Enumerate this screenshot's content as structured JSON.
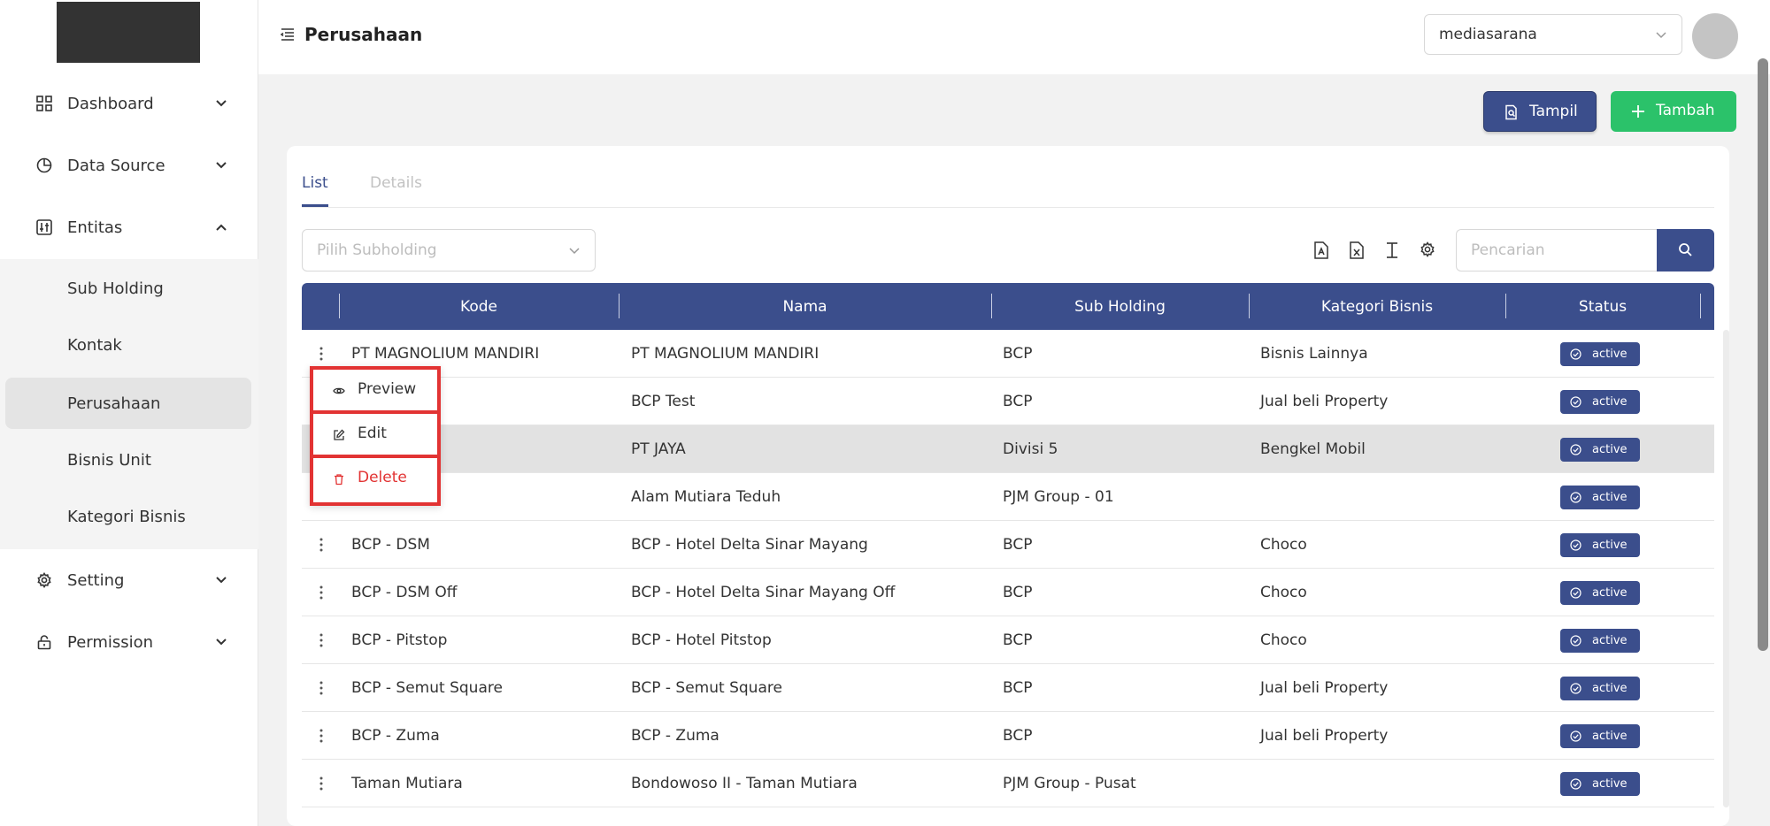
{
  "sidebar": {
    "items": [
      {
        "label": "Dashboard",
        "icon": "grid-icon"
      },
      {
        "label": "Data Source",
        "icon": "pie-chart-icon"
      },
      {
        "label": "Entitas",
        "icon": "sliders-icon"
      },
      {
        "label": "Setting",
        "icon": "gear-icon"
      },
      {
        "label": "Permission",
        "icon": "lock-icon"
      }
    ],
    "entitas_submenu": [
      {
        "label": "Sub Holding"
      },
      {
        "label": "Kontak"
      },
      {
        "label": "Perusahaan"
      },
      {
        "label": "Bisnis Unit"
      },
      {
        "label": "Kategori Bisnis"
      }
    ]
  },
  "header": {
    "title": "Perusahaan",
    "org_select": "mediasarana"
  },
  "actions": {
    "tampil": "Tampil",
    "tambah": "Tambah"
  },
  "tabs": {
    "list": "List",
    "details": "Details"
  },
  "filters": {
    "subholding_placeholder": "Pilih Subholding",
    "search_placeholder": "Pencarian"
  },
  "table": {
    "headers": {
      "kode": "Kode",
      "nama": "Nama",
      "sub_holding": "Sub Holding",
      "kategori": "Kategori Bisnis",
      "status": "Status"
    },
    "rows": [
      {
        "kode": "PT MAGNOLIUM MANDIRI",
        "nama": "PT MAGNOLIUM MANDIRI",
        "sub": "BCP",
        "kat": "Bisnis Lainnya",
        "status": "active"
      },
      {
        "kode": "",
        "nama": "BCP Test",
        "sub": "BCP",
        "kat": "Jual beli Property",
        "status": "active"
      },
      {
        "kode": "",
        "nama": "PT JAYA",
        "sub": "Divisi 5",
        "kat": "Bengkel Mobil",
        "status": "active"
      },
      {
        "kode": "",
        "nama": "Alam Mutiara Teduh",
        "sub": "PJM Group - 01",
        "kat": "",
        "status": "active"
      },
      {
        "kode": "BCP - DSM",
        "nama": "BCP - Hotel Delta Sinar Mayang",
        "sub": "BCP",
        "kat": "Choco",
        "status": "active"
      },
      {
        "kode": "BCP - DSM Off",
        "nama": "BCP - Hotel Delta Sinar Mayang Off",
        "sub": "BCP",
        "kat": "Choco",
        "status": "active"
      },
      {
        "kode": "BCP - Pitstop",
        "nama": "BCP - Hotel Pitstop",
        "sub": "BCP",
        "kat": "Choco",
        "status": "active"
      },
      {
        "kode": "BCP - Semut Square",
        "nama": "BCP - Semut Square",
        "sub": "BCP",
        "kat": "Jual beli Property",
        "status": "active"
      },
      {
        "kode": "BCP - Zuma",
        "nama": "BCP - Zuma",
        "sub": "BCP",
        "kat": "Jual beli Property",
        "status": "active"
      },
      {
        "kode": "Taman Mutiara",
        "nama": "Bondowoso II - Taman Mutiara",
        "sub": "PJM Group - Pusat",
        "kat": "",
        "status": "active"
      }
    ]
  },
  "context_menu": {
    "preview": "Preview",
    "edit": "Edit",
    "delete": "Delete"
  },
  "colors": {
    "primary": "#3b4e8c",
    "success": "#2bc26a",
    "danger": "#e23333"
  }
}
